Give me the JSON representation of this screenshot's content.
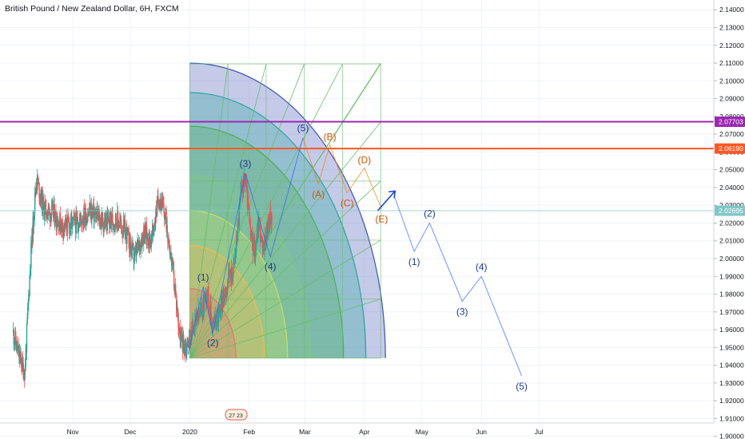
{
  "header": {
    "title": "British Pound / New Zealand Dollar, 6H, FXCM"
  },
  "colors": {
    "up": "#26a69a",
    "down": "#ef5350",
    "wave": "#2962ff",
    "corrective": "#f57c00",
    "purple_line": "#9c27b0",
    "orange_line": "#ff5722",
    "teal_line": "#81c7c7"
  },
  "chart_data": {
    "type": "candlestick",
    "x_axis": {
      "labels": [
        {
          "text": "Nov",
          "date": "2019-11-01"
        },
        {
          "text": "Dec",
          "date": "2019-12-01"
        },
        {
          "text": "2020",
          "date": "2020-01-01"
        },
        {
          "text": "Feb",
          "date": "2020-02-01"
        },
        {
          "text": "Mar",
          "date": "2020-03-01"
        },
        {
          "text": "Apr",
          "date": "2020-04-01"
        },
        {
          "text": "May",
          "date": "2020-05-01"
        },
        {
          "text": "Jun",
          "date": "2020-06-01"
        },
        {
          "text": "Jul",
          "date": "2020-07-01"
        }
      ]
    },
    "y_axis": {
      "ticks": [
        "2.14000",
        "2.13000",
        "2.12000",
        "2.11000",
        "2.10000",
        "2.09000",
        "2.08000",
        "2.07000",
        "2.06000",
        "2.05000",
        "2.04000",
        "2.03000",
        "2.02000",
        "2.01000",
        "2.00000",
        "1.99000",
        "1.98000",
        "1.97000",
        "1.96000",
        "1.95000",
        "1.94000",
        "1.93000",
        "1.92000",
        "1.91000",
        "1.90000"
      ],
      "range": [
        1.8985,
        2.1455
      ]
    },
    "price_lines": [
      {
        "label": "2.07703",
        "value": 2.07703,
        "color": "#9c27b0"
      },
      {
        "label": "2.06190",
        "value": 2.0619,
        "color": "#ff5722"
      },
      {
        "label": "2.02695",
        "value": 2.02695,
        "color": "#81c7c7"
      }
    ],
    "candle_anchors": [
      {
        "date": "2019-10-01",
        "price": 1.958
      },
      {
        "date": "2019-10-04",
        "price": 1.945
      },
      {
        "date": "2019-10-07",
        "price": 1.936
      },
      {
        "date": "2019-10-10",
        "price": 2.0
      },
      {
        "date": "2019-10-13",
        "price": 2.045
      },
      {
        "date": "2019-10-17",
        "price": 2.028
      },
      {
        "date": "2019-10-22",
        "price": 2.025
      },
      {
        "date": "2019-10-27",
        "price": 2.018
      },
      {
        "date": "2019-11-03",
        "price": 2.02
      },
      {
        "date": "2019-11-10",
        "price": 2.027
      },
      {
        "date": "2019-11-17",
        "price": 2.02
      },
      {
        "date": "2019-11-24",
        "price": 2.022
      },
      {
        "date": "2019-11-29",
        "price": 2.014
      },
      {
        "date": "2019-12-03",
        "price": 2.0
      },
      {
        "date": "2019-12-08",
        "price": 2.015
      },
      {
        "date": "2019-12-12",
        "price": 2.01
      },
      {
        "date": "2019-12-16",
        "price": 2.036
      },
      {
        "date": "2019-12-20",
        "price": 2.02
      },
      {
        "date": "2019-12-24",
        "price": 1.985
      },
      {
        "date": "2019-12-27",
        "price": 1.955
      },
      {
        "date": "2019-12-30",
        "price": 1.95
      },
      {
        "date": "2020-01-03",
        "price": 1.962
      },
      {
        "date": "2020-01-07",
        "price": 1.97
      },
      {
        "date": "2020-01-10",
        "price": 1.982
      },
      {
        "date": "2020-01-13",
        "price": 1.962
      },
      {
        "date": "2020-01-17",
        "price": 1.972
      },
      {
        "date": "2020-01-21",
        "price": 1.988
      },
      {
        "date": "2020-01-24",
        "price": 1.995
      },
      {
        "date": "2020-01-28",
        "price": 2.04
      },
      {
        "date": "2020-01-30",
        "price": 2.045
      },
      {
        "date": "2020-02-02",
        "price": 2.01
      },
      {
        "date": "2020-02-04",
        "price": 2.005
      },
      {
        "date": "2020-02-06",
        "price": 2.022
      },
      {
        "date": "2020-02-08",
        "price": 2.003
      },
      {
        "date": "2020-02-10",
        "price": 2.015
      },
      {
        "date": "2020-02-13",
        "price": 2.027
      }
    ],
    "fib_fan": {
      "origin": {
        "date": "2020-01-01",
        "price": 1.944
      },
      "radius_date": "2020-04-12",
      "top_price": 2.11,
      "arcs": [
        0.236,
        0.382,
        0.5,
        0.618,
        0.786,
        0.9,
        1.0
      ],
      "arc_colors": [
        "#e57373",
        "#ffb74d",
        "#c6e068",
        "#81c784",
        "#4caf50",
        "#26a69a",
        "#3f51b5"
      ]
    },
    "waves": {
      "impulse_blue": [
        {
          "label": "(1)",
          "date": "2020-01-08",
          "price": 1.984
        },
        {
          "label": "(2)",
          "date": "2020-01-13",
          "price": 1.958
        },
        {
          "label": "(3)",
          "date": "2020-01-30",
          "price": 2.048
        },
        {
          "label": "(4)",
          "date": "2020-02-12",
          "price": 2.001
        },
        {
          "label": "(5)",
          "date": "2020-02-29",
          "price": 2.068
        }
      ],
      "corrective_orange": [
        {
          "label": "(A)",
          "date": "2020-03-08",
          "price": 2.042
        },
        {
          "label": "(B)",
          "date": "2020-03-14",
          "price": 2.064
        },
        {
          "label": "(C)",
          "date": "2020-03-23",
          "price": 2.037
        },
        {
          "label": "(D)",
          "date": "2020-04-01",
          "price": 2.051
        },
        {
          "label": "(E)",
          "date": "2020-04-10",
          "price": 2.028
        }
      ],
      "forecast_blue": [
        {
          "label": "(1)",
          "date": "2020-04-27",
          "price": 2.004
        },
        {
          "label": "(2)",
          "date": "2020-05-05",
          "price": 2.02
        },
        {
          "label": "(3)",
          "date": "2020-05-22",
          "price": 1.976
        },
        {
          "label": "(4)",
          "date": "2020-06-01",
          "price": 1.99
        },
        {
          "label": "(5)",
          "date": "2020-06-22",
          "price": 1.934
        }
      ]
    }
  },
  "events": {
    "label": "27 23"
  }
}
